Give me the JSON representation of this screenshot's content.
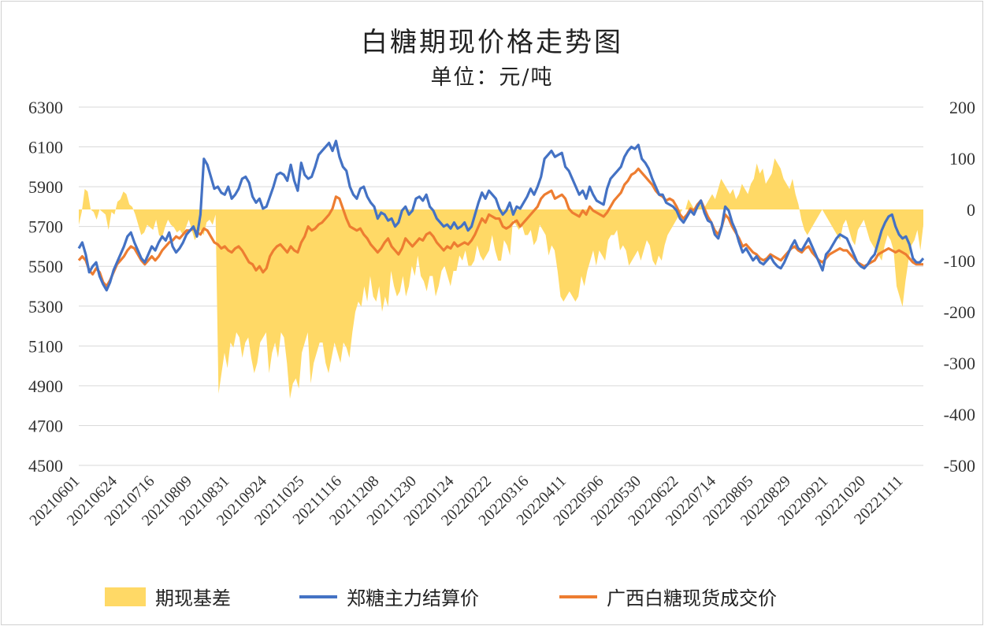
{
  "chart_data": {
    "type": "area+line",
    "title": "白糖期现价格走势图",
    "subtitle": "单位：元/吨",
    "y_left": {
      "min": 4500,
      "max": 6300,
      "ticks": [
        "6300",
        "6100",
        "5900",
        "5700",
        "5500",
        "5300",
        "5100",
        "4900",
        "4700",
        "4500"
      ]
    },
    "y_right": {
      "min": -500,
      "max": 200,
      "ticks": [
        "200",
        "100",
        "0",
        "-100",
        "-200",
        "-300",
        "-400",
        "-500"
      ]
    },
    "x_ticks": [
      "20210601",
      "20210624",
      "20210716",
      "20210809",
      "20210831",
      "20210924",
      "20211025",
      "20211116",
      "20211208",
      "20211230",
      "20220124",
      "20220222",
      "20220316",
      "20220411",
      "20220506",
      "20220530",
      "20220622",
      "20220714",
      "20220805",
      "20220829",
      "20220921",
      "20221020",
      "20221111"
    ],
    "legend_position": "bottom",
    "series": [
      {
        "name": "期现基差",
        "type": "area",
        "axis": "right",
        "color": "#FFD966",
        "values": [
          -30,
          -5,
          40,
          35,
          0,
          -5,
          -20,
          0,
          -5,
          -10,
          -40,
          -5,
          -10,
          15,
          20,
          35,
          30,
          10,
          5,
          -10,
          -30,
          -50,
          -45,
          -30,
          -35,
          -40,
          -20,
          -50,
          -55,
          -35,
          -20,
          -30,
          -35,
          -45,
          -40,
          -50,
          -35,
          -20,
          -40,
          -60,
          -50,
          -40,
          -50,
          -25,
          -20,
          -30,
          -10,
          -360,
          -320,
          -280,
          -310,
          -260,
          -270,
          -240,
          -250,
          -290,
          -260,
          -250,
          -290,
          -320,
          -300,
          -260,
          -250,
          -240,
          -320,
          -280,
          -260,
          -290,
          -240,
          -250,
          -300,
          -370,
          -340,
          -330,
          -350,
          -280,
          -260,
          -240,
          -340,
          -300,
          -280,
          -260,
          -260,
          -300,
          -320,
          -290,
          -260,
          -280,
          -300,
          -260,
          -270,
          -290,
          -240,
          -200,
          -180,
          -190,
          -150,
          -180,
          -130,
          -170,
          -180,
          -150,
          -200,
          -170,
          -190,
          -120,
          -150,
          -170,
          -160,
          -130,
          -170,
          -150,
          -110,
          -130,
          -90,
          -130,
          -140,
          -160,
          -130,
          -130,
          -170,
          -150,
          -120,
          -110,
          -130,
          -150,
          -120,
          -120,
          -90,
          -100,
          -80,
          -110,
          -110,
          -100,
          -70,
          -90,
          -100,
          -90,
          -80,
          -50,
          -80,
          -100,
          -100,
          -60,
          -70,
          -90,
          -20,
          -30,
          -40,
          -30,
          -50,
          -50,
          -40,
          -70,
          -60,
          -30,
          -40,
          -50,
          -90,
          -70,
          -80,
          -120,
          -170,
          -180,
          -170,
          -160,
          -170,
          -180,
          -170,
          -130,
          -150,
          -120,
          -100,
          -80,
          -110,
          -80,
          -90,
          -100,
          -60,
          -50,
          -50,
          -40,
          -80,
          -70,
          -80,
          -110,
          -100,
          -90,
          -80,
          -100,
          -80,
          -60,
          -70,
          -100,
          -110,
          -90,
          -100,
          -70,
          -50,
          -40,
          -30,
          -20,
          -10,
          0,
          0,
          20,
          10,
          0,
          0,
          10,
          0,
          10,
          20,
          30,
          20,
          40,
          60,
          50,
          40,
          30,
          40,
          20,
          30,
          50,
          40,
          30,
          50,
          60,
          90,
          70,
          80,
          50,
          60,
          70,
          100,
          90,
          80,
          60,
          50,
          40,
          60,
          30,
          10,
          -20,
          -40,
          -50,
          -40,
          -30,
          -20,
          -10,
          0,
          -10,
          -20,
          -30,
          -40,
          -50,
          -60,
          -30,
          -20,
          -40,
          -60,
          -70,
          -40,
          -30,
          -20,
          -40,
          -60,
          -70,
          -80,
          -90,
          -100,
          -70,
          -50,
          -60,
          -80,
          -150,
          -170,
          -190,
          -140,
          -100,
          -70,
          -60,
          -40,
          -80,
          -30
        ]
      },
      {
        "name": "郑糖主力结算价",
        "type": "line",
        "axis": "left",
        "color": "#4472C4",
        "values": [
          5590,
          5620,
          5560,
          5470,
          5500,
          5520,
          5450,
          5410,
          5380,
          5420,
          5480,
          5520,
          5560,
          5600,
          5650,
          5670,
          5620,
          5580,
          5540,
          5520,
          5560,
          5600,
          5580,
          5620,
          5650,
          5630,
          5670,
          5600,
          5570,
          5590,
          5620,
          5660,
          5680,
          5700,
          5650,
          5760,
          6040,
          6010,
          5950,
          5890,
          5900,
          5870,
          5860,
          5900,
          5840,
          5860,
          5890,
          5940,
          5950,
          5920,
          5850,
          5820,
          5840,
          5790,
          5800,
          5850,
          5900,
          5960,
          5970,
          5960,
          5930,
          6010,
          5930,
          5880,
          6020,
          5960,
          5940,
          5950,
          6000,
          6060,
          6080,
          6100,
          6120,
          6080,
          6130,
          6050,
          6000,
          5980,
          5900,
          5860,
          5840,
          5890,
          5900,
          5850,
          5820,
          5800,
          5740,
          5770,
          5760,
          5730,
          5740,
          5700,
          5720,
          5780,
          5800,
          5760,
          5780,
          5840,
          5850,
          5830,
          5860,
          5800,
          5780,
          5740,
          5720,
          5700,
          5710,
          5690,
          5720,
          5690,
          5700,
          5720,
          5680,
          5700,
          5760,
          5820,
          5870,
          5840,
          5880,
          5860,
          5840,
          5790,
          5760,
          5780,
          5820,
          5760,
          5800,
          5790,
          5820,
          5850,
          5890,
          5860,
          5900,
          5950,
          6040,
          6060,
          6080,
          6050,
          6060,
          6070,
          6000,
          5980,
          5940,
          5900,
          5860,
          5880,
          5840,
          5900,
          5860,
          5830,
          5820,
          5810,
          5890,
          5940,
          5960,
          5980,
          6000,
          6050,
          6080,
          6100,
          6090,
          6110,
          6040,
          6020,
          5990,
          5940,
          5900,
          5860,
          5860,
          5820,
          5810,
          5800,
          5780,
          5740,
          5720,
          5750,
          5780,
          5760,
          5800,
          5830,
          5770,
          5730,
          5720,
          5660,
          5640,
          5700,
          5800,
          5780,
          5720,
          5680,
          5620,
          5570,
          5590,
          5560,
          5530,
          5550,
          5520,
          5510,
          5530,
          5550,
          5520,
          5500,
          5490,
          5520,
          5560,
          5600,
          5630,
          5590,
          5580,
          5610,
          5640,
          5600,
          5560,
          5520,
          5480,
          5560,
          5580,
          5610,
          5640,
          5660,
          5650,
          5640,
          5600,
          5560,
          5520,
          5500,
          5490,
          5510,
          5540,
          5560,
          5620,
          5680,
          5720,
          5750,
          5760,
          5700,
          5660,
          5640,
          5650,
          5610,
          5540,
          5520,
          5520,
          5540
        ]
      },
      {
        "name": "广西白糖现货成交价",
        "type": "line",
        "axis": "left",
        "color": "#ED7D31",
        "values": [
          5530,
          5550,
          5530,
          5480,
          5460,
          5490,
          5470,
          5420,
          5400,
          5430,
          5470,
          5510,
          5530,
          5550,
          5580,
          5600,
          5590,
          5560,
          5530,
          5510,
          5530,
          5550,
          5530,
          5550,
          5580,
          5600,
          5620,
          5630,
          5650,
          5640,
          5660,
          5680,
          5680,
          5690,
          5670,
          5660,
          5690,
          5680,
          5650,
          5620,
          5610,
          5590,
          5600,
          5580,
          5570,
          5590,
          5600,
          5580,
          5550,
          5520,
          5510,
          5480,
          5500,
          5470,
          5490,
          5550,
          5580,
          5600,
          5610,
          5590,
          5570,
          5600,
          5580,
          5570,
          5620,
          5650,
          5700,
          5680,
          5690,
          5710,
          5720,
          5740,
          5760,
          5790,
          5850,
          5840,
          5790,
          5740,
          5700,
          5690,
          5680,
          5690,
          5660,
          5640,
          5610,
          5590,
          5570,
          5590,
          5620,
          5640,
          5600,
          5580,
          5560,
          5590,
          5640,
          5620,
          5600,
          5620,
          5640,
          5630,
          5660,
          5670,
          5650,
          5620,
          5600,
          5580,
          5600,
          5590,
          5620,
          5600,
          5610,
          5620,
          5610,
          5630,
          5660,
          5700,
          5740,
          5720,
          5760,
          5750,
          5740,
          5740,
          5700,
          5690,
          5700,
          5720,
          5730,
          5700,
          5720,
          5740,
          5760,
          5780,
          5800,
          5840,
          5860,
          5870,
          5880,
          5840,
          5850,
          5860,
          5840,
          5790,
          5770,
          5760,
          5750,
          5780,
          5760,
          5800,
          5780,
          5770,
          5760,
          5750,
          5770,
          5800,
          5830,
          5850,
          5870,
          5910,
          5930,
          5960,
          5970,
          5990,
          5970,
          5950,
          5930,
          5910,
          5880,
          5860,
          5850,
          5830,
          5840,
          5830,
          5800,
          5760,
          5740,
          5760,
          5790,
          5780,
          5810,
          5830,
          5790,
          5750,
          5720,
          5680,
          5660,
          5700,
          5760,
          5740,
          5700,
          5670,
          5640,
          5600,
          5610,
          5590,
          5570,
          5560,
          5540,
          5530,
          5540,
          5560,
          5550,
          5540,
          5530,
          5550,
          5570,
          5590,
          5600,
          5580,
          5570,
          5590,
          5600,
          5570,
          5550,
          5530,
          5520,
          5540,
          5560,
          5570,
          5580,
          5590,
          5580,
          5580,
          5560,
          5540,
          5520,
          5510,
          5500,
          5510,
          5520,
          5530,
          5560,
          5570,
          5580,
          5590,
          5580,
          5570,
          5580,
          5570,
          5560,
          5540,
          5520,
          5510,
          5510,
          5510
        ]
      }
    ]
  }
}
